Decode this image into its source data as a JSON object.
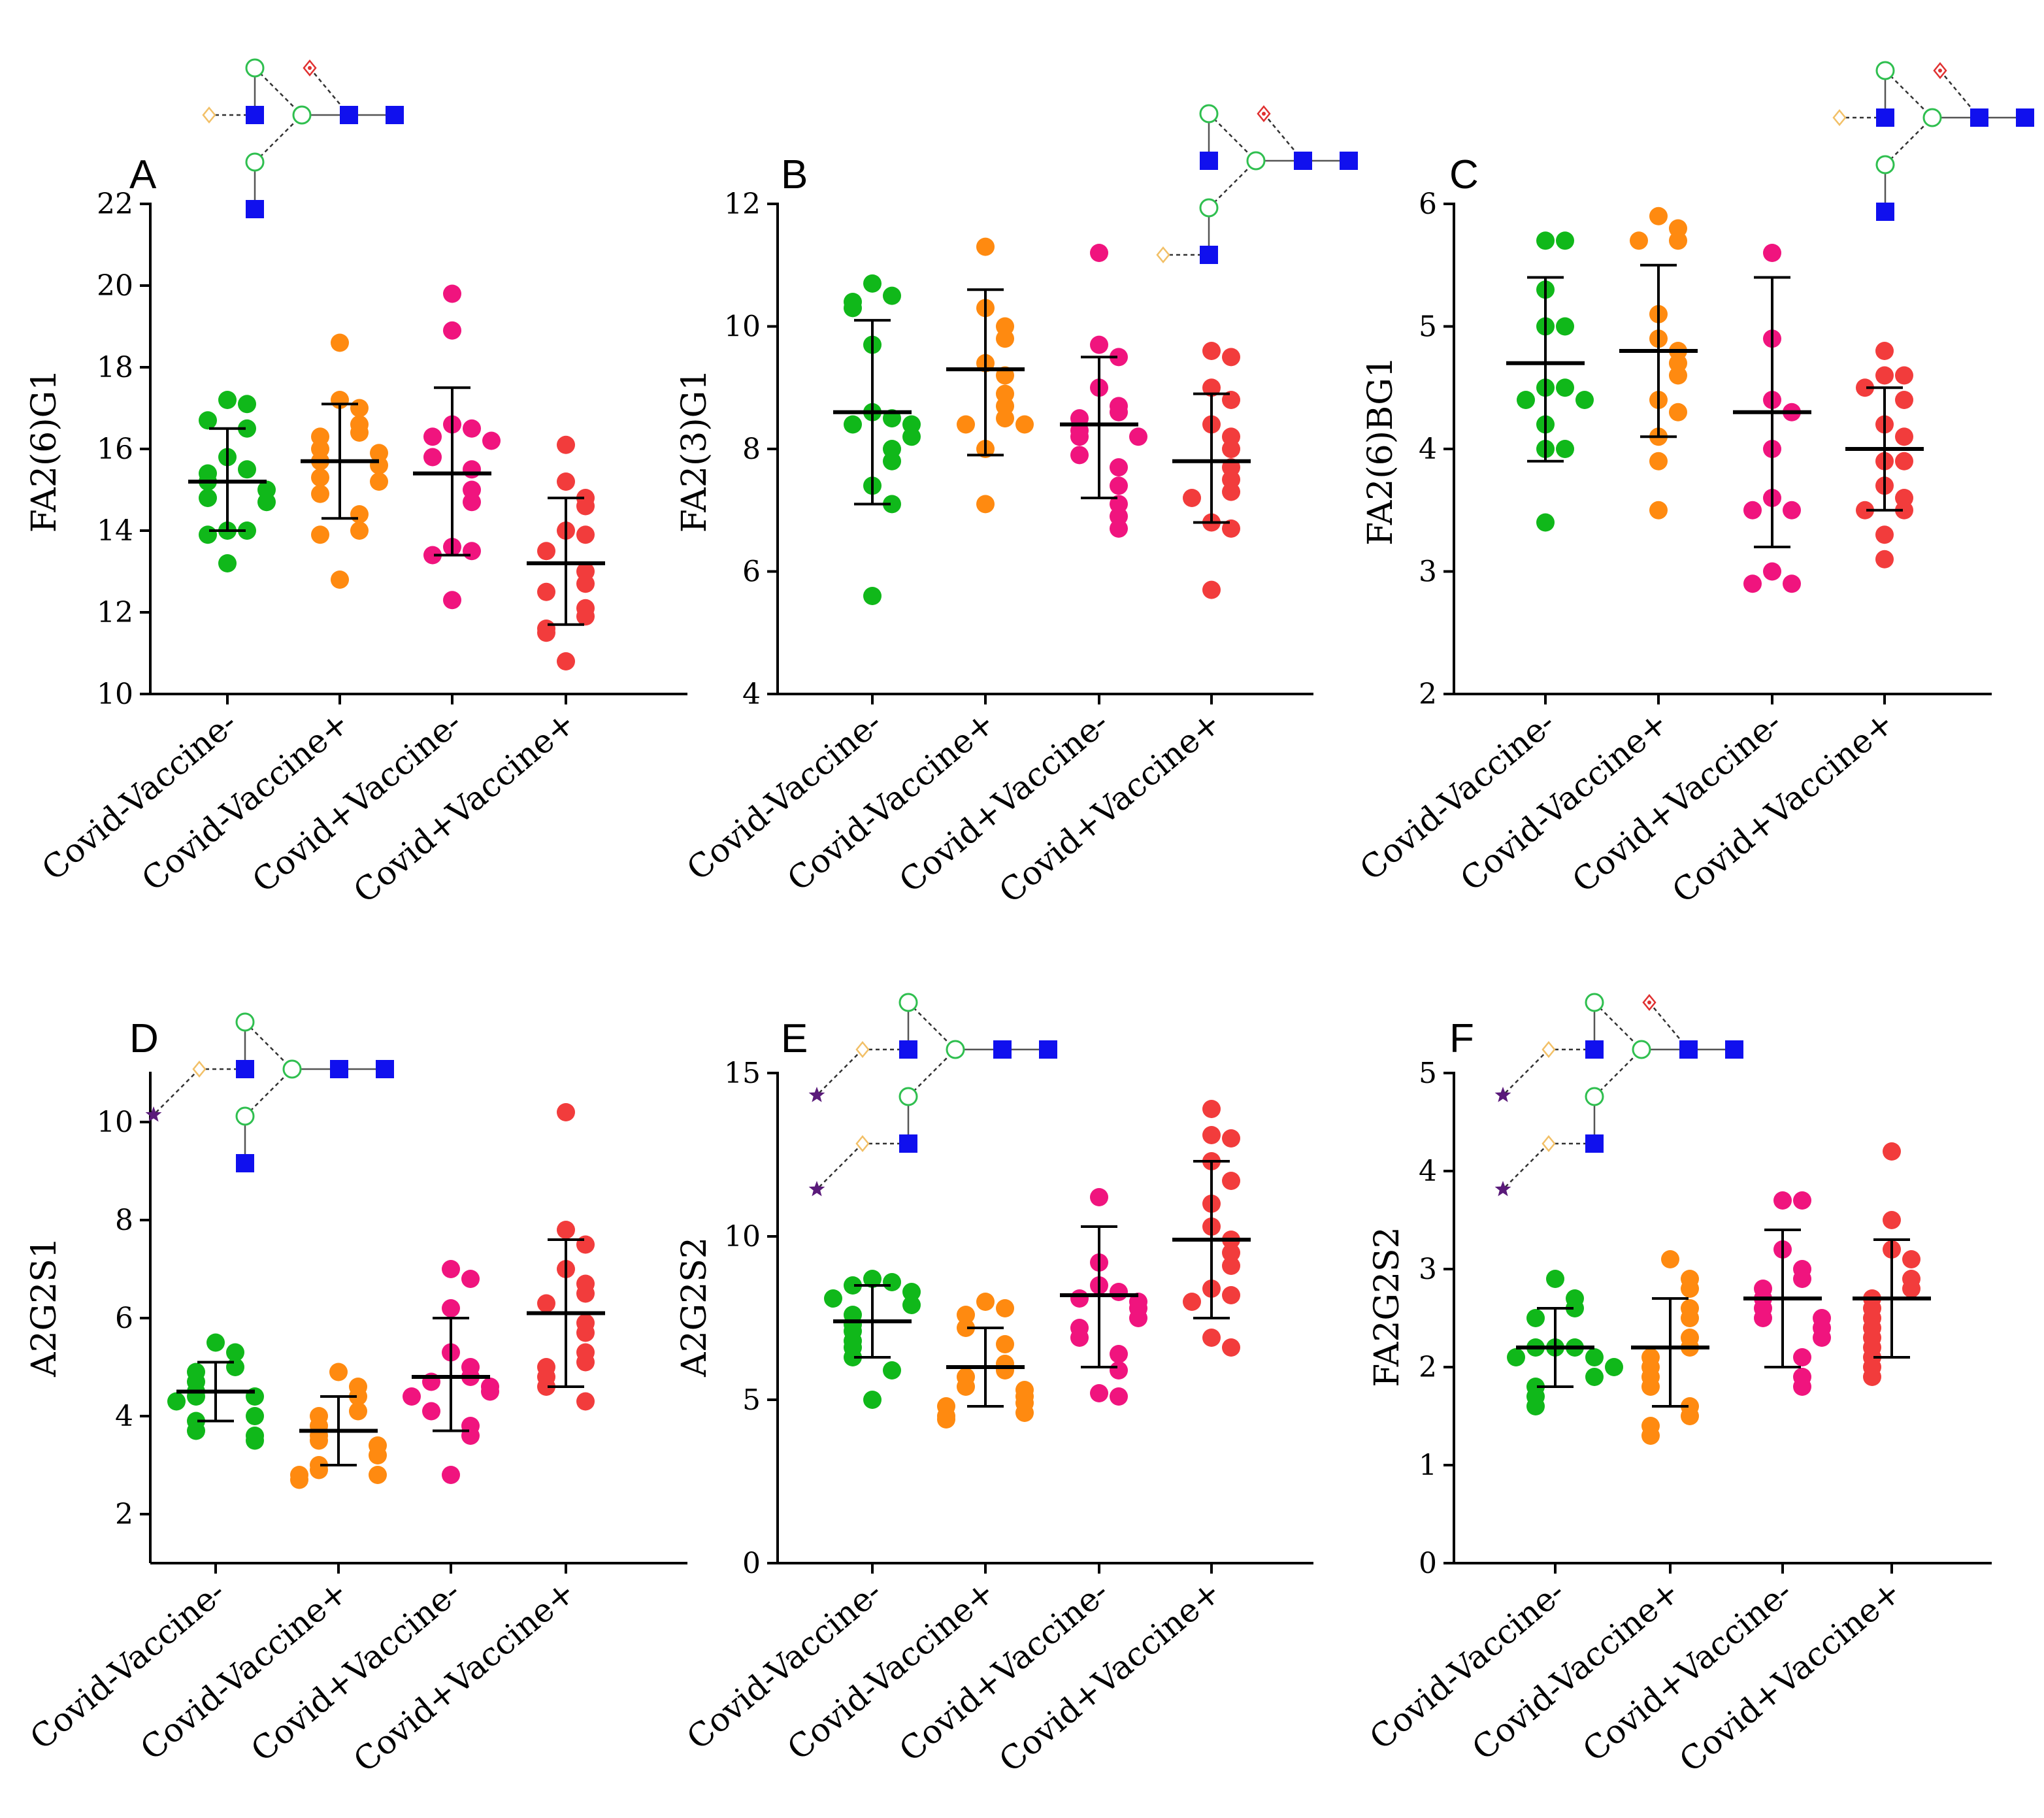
{
  "colors": {
    "Covid-Vaccine-": "#10b81a",
    "Covid-Vaccine+": "#ff8a10",
    "Covid+Vaccine-": "#f0147e",
    "Covid+Vaccine+": "#f23c3c",
    "glcnac": "#1010ee",
    "mannose": "#2fbf4f",
    "galactose": "#f2c067",
    "fucose": "#e03030",
    "sialic_acid": "#5a1a7a"
  },
  "groups": [
    "Covid-Vaccine-",
    "Covid-Vaccine+",
    "Covid+Vaccine-",
    "Covid+Vaccine+"
  ],
  "chart_data": [
    {
      "panel": "A",
      "type": "scatter",
      "ylabel": "FA2(6)G1",
      "ylim": [
        10,
        22
      ],
      "yticks": [
        "10",
        "12",
        "14",
        "16",
        "18",
        "20",
        "22"
      ],
      "categories": [
        "Covid-Vaccine-",
        "Covid-Vaccine+",
        "Covid+Vaccine-",
        "Covid+Vaccine+"
      ],
      "series": [
        {
          "name": "Covid-Vaccine-",
          "values": [
            17.2,
            17.1,
            16.7,
            16.5,
            15.8,
            15.5,
            15.4,
            15.2,
            15.0,
            14.8,
            14.7,
            14.0,
            14.0,
            13.9,
            13.2
          ],
          "mean": 15.2,
          "sd_low": 14.0,
          "sd_high": 16.5
        },
        {
          "name": "Covid-Vaccine+",
          "values": [
            18.6,
            17.2,
            17.0,
            16.6,
            16.4,
            16.3,
            16.0,
            15.9,
            15.7,
            15.6,
            15.3,
            15.2,
            14.9,
            14.4,
            14.0,
            13.9,
            12.8
          ],
          "mean": 15.7,
          "sd_low": 14.3,
          "sd_high": 17.1
        },
        {
          "name": "Covid+Vaccine-",
          "values": [
            19.8,
            18.9,
            16.6,
            16.5,
            16.3,
            16.2,
            15.8,
            15.5,
            15.0,
            14.7,
            13.6,
            13.5,
            13.4,
            12.3
          ],
          "mean": 15.4,
          "sd_low": 13.4,
          "sd_high": 17.5
        },
        {
          "name": "Covid+Vaccine+",
          "values": [
            16.1,
            15.2,
            14.8,
            14.6,
            14.0,
            13.9,
            13.5,
            13.0,
            12.7,
            12.5,
            12.1,
            11.9,
            11.6,
            11.5,
            10.8
          ],
          "mean": 13.2,
          "sd_low": 11.7,
          "sd_high": 14.8
        }
      ],
      "glycan": "FA2(6)G1"
    },
    {
      "panel": "B",
      "type": "scatter",
      "ylabel": "FA2(3)G1",
      "ylim": [
        4,
        12
      ],
      "yticks": [
        "4",
        "6",
        "8",
        "10",
        "12"
      ],
      "categories": [
        "Covid-Vaccine-",
        "Covid-Vaccine+",
        "Covid+Vaccine-",
        "Covid+Vaccine+"
      ],
      "series": [
        {
          "name": "Covid-Vaccine-",
          "values": [
            10.7,
            10.5,
            10.4,
            10.3,
            9.7,
            8.6,
            8.5,
            8.4,
            8.4,
            8.2,
            8.0,
            7.8,
            7.4,
            7.1,
            5.6
          ],
          "mean": 8.6,
          "sd_low": 7.1,
          "sd_high": 10.1
        },
        {
          "name": "Covid-Vaccine+",
          "values": [
            11.3,
            10.3,
            10.0,
            9.8,
            9.4,
            9.2,
            8.9,
            8.7,
            8.5,
            8.4,
            8.4,
            8.0,
            7.1
          ],
          "mean": 9.3,
          "sd_low": 7.9,
          "sd_high": 10.6
        },
        {
          "name": "Covid+Vaccine-",
          "values": [
            11.2,
            9.7,
            9.5,
            9.0,
            8.7,
            8.6,
            8.5,
            8.3,
            8.2,
            8.2,
            7.9,
            7.7,
            7.4,
            7.1,
            6.9,
            6.7
          ],
          "mean": 8.4,
          "sd_low": 7.2,
          "sd_high": 9.5
        },
        {
          "name": "Covid+Vaccine+",
          "values": [
            9.6,
            9.5,
            9.0,
            8.8,
            8.4,
            8.2,
            8.0,
            7.7,
            7.5,
            7.3,
            7.2,
            6.8,
            6.7,
            5.7
          ],
          "mean": 7.8,
          "sd_low": 6.8,
          "sd_high": 8.9
        }
      ],
      "glycan": "FA2(3)G1"
    },
    {
      "panel": "C",
      "type": "scatter",
      "ylabel": "FA2(6)BG1",
      "ylim": [
        2,
        6
      ],
      "yticks": [
        "2",
        "3",
        "4",
        "5",
        "6"
      ],
      "categories": [
        "Covid-Vaccine-",
        "Covid-Vaccine+",
        "Covid+Vaccine-",
        "Covid+Vaccine+"
      ],
      "series": [
        {
          "name": "Covid-Vaccine-",
          "values": [
            5.7,
            5.7,
            5.3,
            5.0,
            5.0,
            4.5,
            4.5,
            4.4,
            4.4,
            4.2,
            4.0,
            4.0,
            3.4
          ],
          "mean": 4.7,
          "sd_low": 3.9,
          "sd_high": 5.4
        },
        {
          "name": "Covid-Vaccine+",
          "values": [
            5.9,
            5.8,
            5.7,
            5.7,
            5.1,
            4.9,
            4.8,
            4.7,
            4.6,
            4.4,
            4.3,
            4.1,
            3.9,
            3.5
          ],
          "mean": 4.8,
          "sd_low": 4.1,
          "sd_high": 5.5
        },
        {
          "name": "Covid+Vaccine-",
          "values": [
            5.6,
            4.9,
            4.4,
            4.3,
            4.0,
            3.6,
            3.5,
            3.5,
            3.0,
            2.9,
            2.9
          ],
          "mean": 4.3,
          "sd_low": 3.2,
          "sd_high": 5.4
        },
        {
          "name": "Covid+Vaccine+",
          "values": [
            4.8,
            4.6,
            4.6,
            4.5,
            4.4,
            4.2,
            4.1,
            3.9,
            3.9,
            3.7,
            3.6,
            3.5,
            3.5,
            3.3,
            3.1
          ],
          "mean": 4.0,
          "sd_low": 3.5,
          "sd_high": 4.5
        }
      ],
      "glycan": "FA2(6)BG1"
    },
    {
      "panel": "D",
      "type": "scatter",
      "ylabel": "A2G2S1",
      "ylim": [
        1,
        11
      ],
      "yticks": [
        "2",
        "4",
        "6",
        "8",
        "10"
      ],
      "categories": [
        "Covid-Vaccine-",
        "Covid-Vaccine+",
        "Covid+Vaccine-",
        "Covid+Vaccine+"
      ],
      "series": [
        {
          "name": "Covid-Vaccine-",
          "values": [
            5.5,
            5.3,
            5.0,
            4.9,
            4.7,
            4.5,
            4.4,
            4.4,
            4.3,
            4.0,
            3.9,
            3.7,
            3.6,
            3.5
          ],
          "mean": 4.5,
          "sd_low": 3.9,
          "sd_high": 5.1
        },
        {
          "name": "Covid-Vaccine+",
          "values": [
            4.9,
            4.6,
            4.4,
            4.1,
            4.0,
            3.8,
            3.6,
            3.5,
            3.4,
            3.2,
            3.0,
            2.9,
            2.8,
            2.8,
            2.7
          ],
          "mean": 3.7,
          "sd_low": 3.0,
          "sd_high": 4.4
        },
        {
          "name": "Covid+Vaccine-",
          "values": [
            7.0,
            6.8,
            6.2,
            5.3,
            5.0,
            4.8,
            4.7,
            4.6,
            4.5,
            4.4,
            4.1,
            3.8,
            3.6,
            2.8
          ],
          "mean": 4.8,
          "sd_low": 3.7,
          "sd_high": 6.0
        },
        {
          "name": "Covid+Vaccine+",
          "values": [
            10.2,
            7.8,
            7.5,
            7.0,
            6.7,
            6.5,
            6.3,
            5.9,
            5.7,
            5.3,
            5.1,
            5.0,
            4.8,
            4.6,
            4.3
          ],
          "mean": 6.1,
          "sd_low": 4.6,
          "sd_high": 7.6
        }
      ],
      "glycan": "A2G2S1"
    },
    {
      "panel": "E",
      "type": "scatter",
      "ylabel": "A2G2S2",
      "ylim": [
        0,
        15
      ],
      "yticks": [
        "0",
        "5",
        "10",
        "15"
      ],
      "categories": [
        "Covid-Vaccine-",
        "Covid-Vaccine+",
        "Covid+Vaccine-",
        "Covid+Vaccine+"
      ],
      "series": [
        {
          "name": "Covid-Vaccine-",
          "values": [
            8.7,
            8.6,
            8.5,
            8.3,
            8.1,
            7.9,
            7.6,
            7.3,
            7.1,
            6.8,
            6.6,
            6.3,
            5.9,
            5.0
          ],
          "mean": 7.4,
          "sd_low": 6.3,
          "sd_high": 8.5
        },
        {
          "name": "Covid-Vaccine+",
          "values": [
            8.0,
            7.8,
            7.6,
            7.2,
            6.7,
            6.1,
            5.9,
            5.7,
            5.4,
            5.3,
            5.1,
            4.9,
            4.8,
            4.6,
            4.5,
            4.4
          ],
          "mean": 6.0,
          "sd_low": 4.8,
          "sd_high": 7.2
        },
        {
          "name": "Covid+Vaccine-",
          "values": [
            11.2,
            9.2,
            8.5,
            8.3,
            8.1,
            8.0,
            7.8,
            7.5,
            7.2,
            6.9,
            6.4,
            5.9,
            5.2,
            5.1
          ],
          "mean": 8.2,
          "sd_low": 6.0,
          "sd_high": 10.3
        },
        {
          "name": "Covid+Vaccine+",
          "values": [
            13.9,
            13.1,
            13.0,
            12.3,
            11.7,
            11.0,
            10.3,
            9.9,
            9.5,
            9.1,
            8.4,
            8.2,
            8.0,
            6.9,
            6.6
          ],
          "mean": 9.9,
          "sd_low": 7.5,
          "sd_high": 12.3
        }
      ],
      "glycan": "A2G2S2"
    },
    {
      "panel": "F",
      "type": "scatter",
      "ylabel": "FA2G2S2",
      "ylim": [
        0,
        5
      ],
      "yticks": [
        "0",
        "1",
        "2",
        "3",
        "4",
        "5"
      ],
      "categories": [
        "Covid-Vaccine-",
        "Covid-Vaccine+",
        "Covid+Vaccine-",
        "Covid+Vaccine+"
      ],
      "series": [
        {
          "name": "Covid-Vaccine-",
          "values": [
            2.9,
            2.7,
            2.6,
            2.5,
            2.2,
            2.2,
            2.2,
            2.1,
            2.1,
            2.0,
            1.9,
            1.8,
            1.7,
            1.6
          ],
          "mean": 2.2,
          "sd_low": 1.8,
          "sd_high": 2.6
        },
        {
          "name": "Covid-Vaccine+",
          "values": [
            3.1,
            2.9,
            2.8,
            2.6,
            2.5,
            2.3,
            2.2,
            2.1,
            2.0,
            1.9,
            1.8,
            1.6,
            1.5,
            1.4,
            1.3
          ],
          "mean": 2.2,
          "sd_low": 1.6,
          "sd_high": 2.7
        },
        {
          "name": "Covid+Vaccine-",
          "values": [
            3.7,
            3.7,
            3.2,
            3.0,
            2.9,
            2.8,
            2.7,
            2.6,
            2.5,
            2.5,
            2.4,
            2.3,
            2.1,
            1.9,
            1.8
          ],
          "mean": 2.7,
          "sd_low": 2.0,
          "sd_high": 3.4
        },
        {
          "name": "Covid+Vaccine+",
          "values": [
            4.2,
            3.5,
            3.2,
            3.1,
            2.9,
            2.8,
            2.7,
            2.6,
            2.5,
            2.4,
            2.3,
            2.2,
            2.1,
            2.0,
            1.9
          ],
          "mean": 2.7,
          "sd_low": 2.1,
          "sd_high": 3.3
        }
      ],
      "glycan": "FA2G2S2"
    }
  ]
}
